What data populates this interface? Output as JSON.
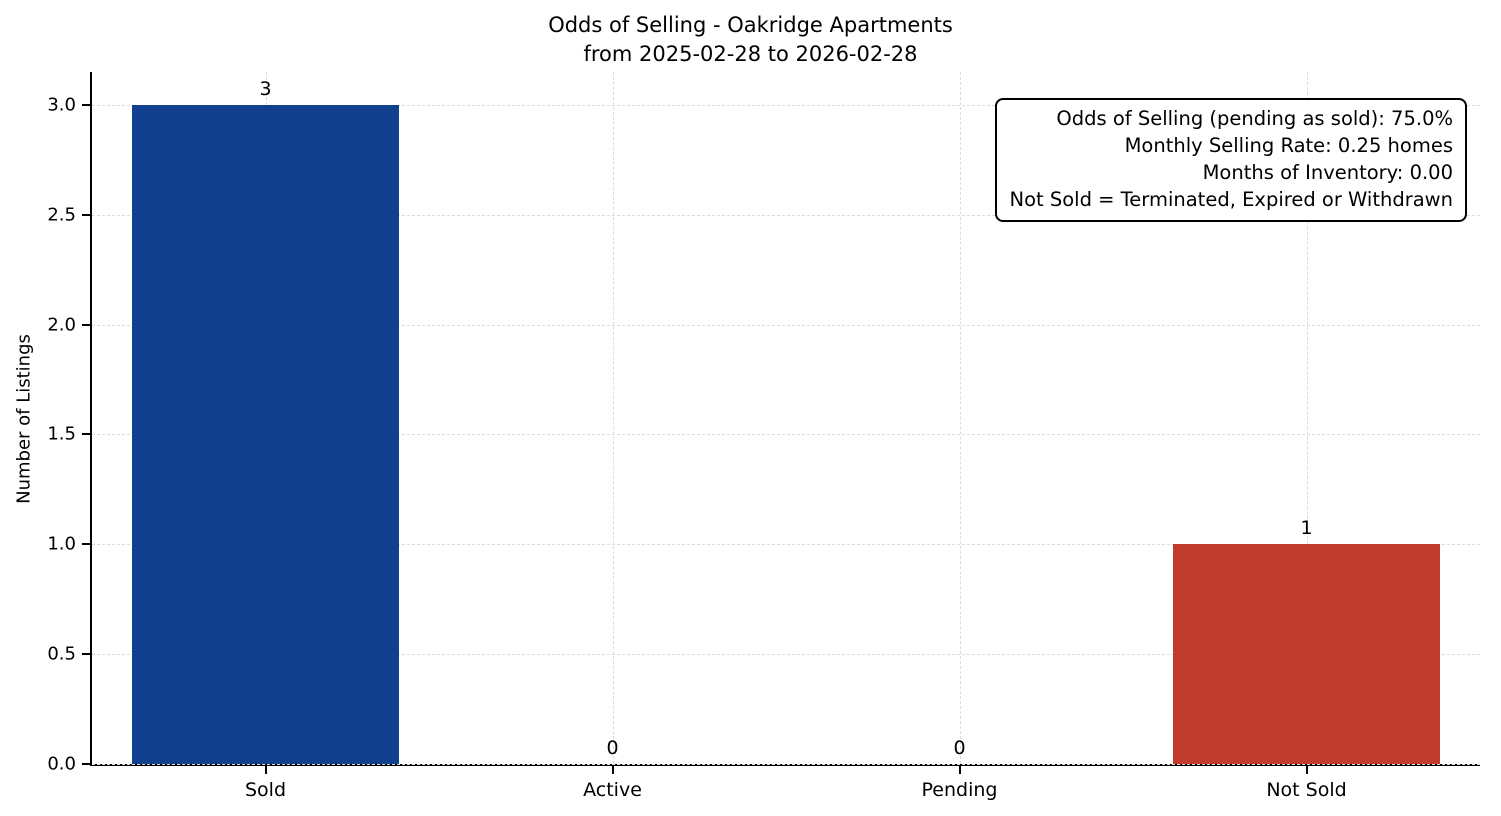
{
  "figure": {
    "title_line1": "Odds of Selling - Oakridge Apartments",
    "title_line2": "from 2025-02-28 to 2026-02-28",
    "ylabel": "Number of Listings"
  },
  "annotation": {
    "lines": [
      "Odds of Selling (pending as sold): 75.0%",
      "Monthly Selling Rate: 0.25 homes",
      "Months of Inventory: 0.00",
      "Not Sold = Terminated, Expired or Withdrawn"
    ]
  },
  "chart_data": {
    "type": "bar",
    "title": "Odds of Selling - Oakridge Apartments\nfrom 2025-02-28 to 2026-02-28",
    "categories": [
      "Sold",
      "Active",
      "Pending",
      "Not Sold"
    ],
    "values": [
      3,
      0,
      0,
      1
    ],
    "value_labels": [
      "3",
      "0",
      "0",
      "1"
    ],
    "bar_colors": [
      "#11418e",
      "#11418e",
      "#11418e",
      "#c23b2c"
    ],
    "xlabel": "",
    "ylabel": "Number of Listings",
    "ylim": [
      0,
      3.15
    ],
    "yticks": [
      0.0,
      0.5,
      1.0,
      1.5,
      2.0,
      2.5,
      3.0
    ],
    "grid": true,
    "grid_style": "dashed",
    "legend": "none",
    "bar_width_fraction": 0.77,
    "annotation_lines": [
      "Odds of Selling (pending as sold): 75.0%",
      "Monthly Selling Rate: 0.25 homes",
      "Months of Inventory: 0.00",
      "Not Sold = Terminated, Expired or Withdrawn"
    ]
  }
}
